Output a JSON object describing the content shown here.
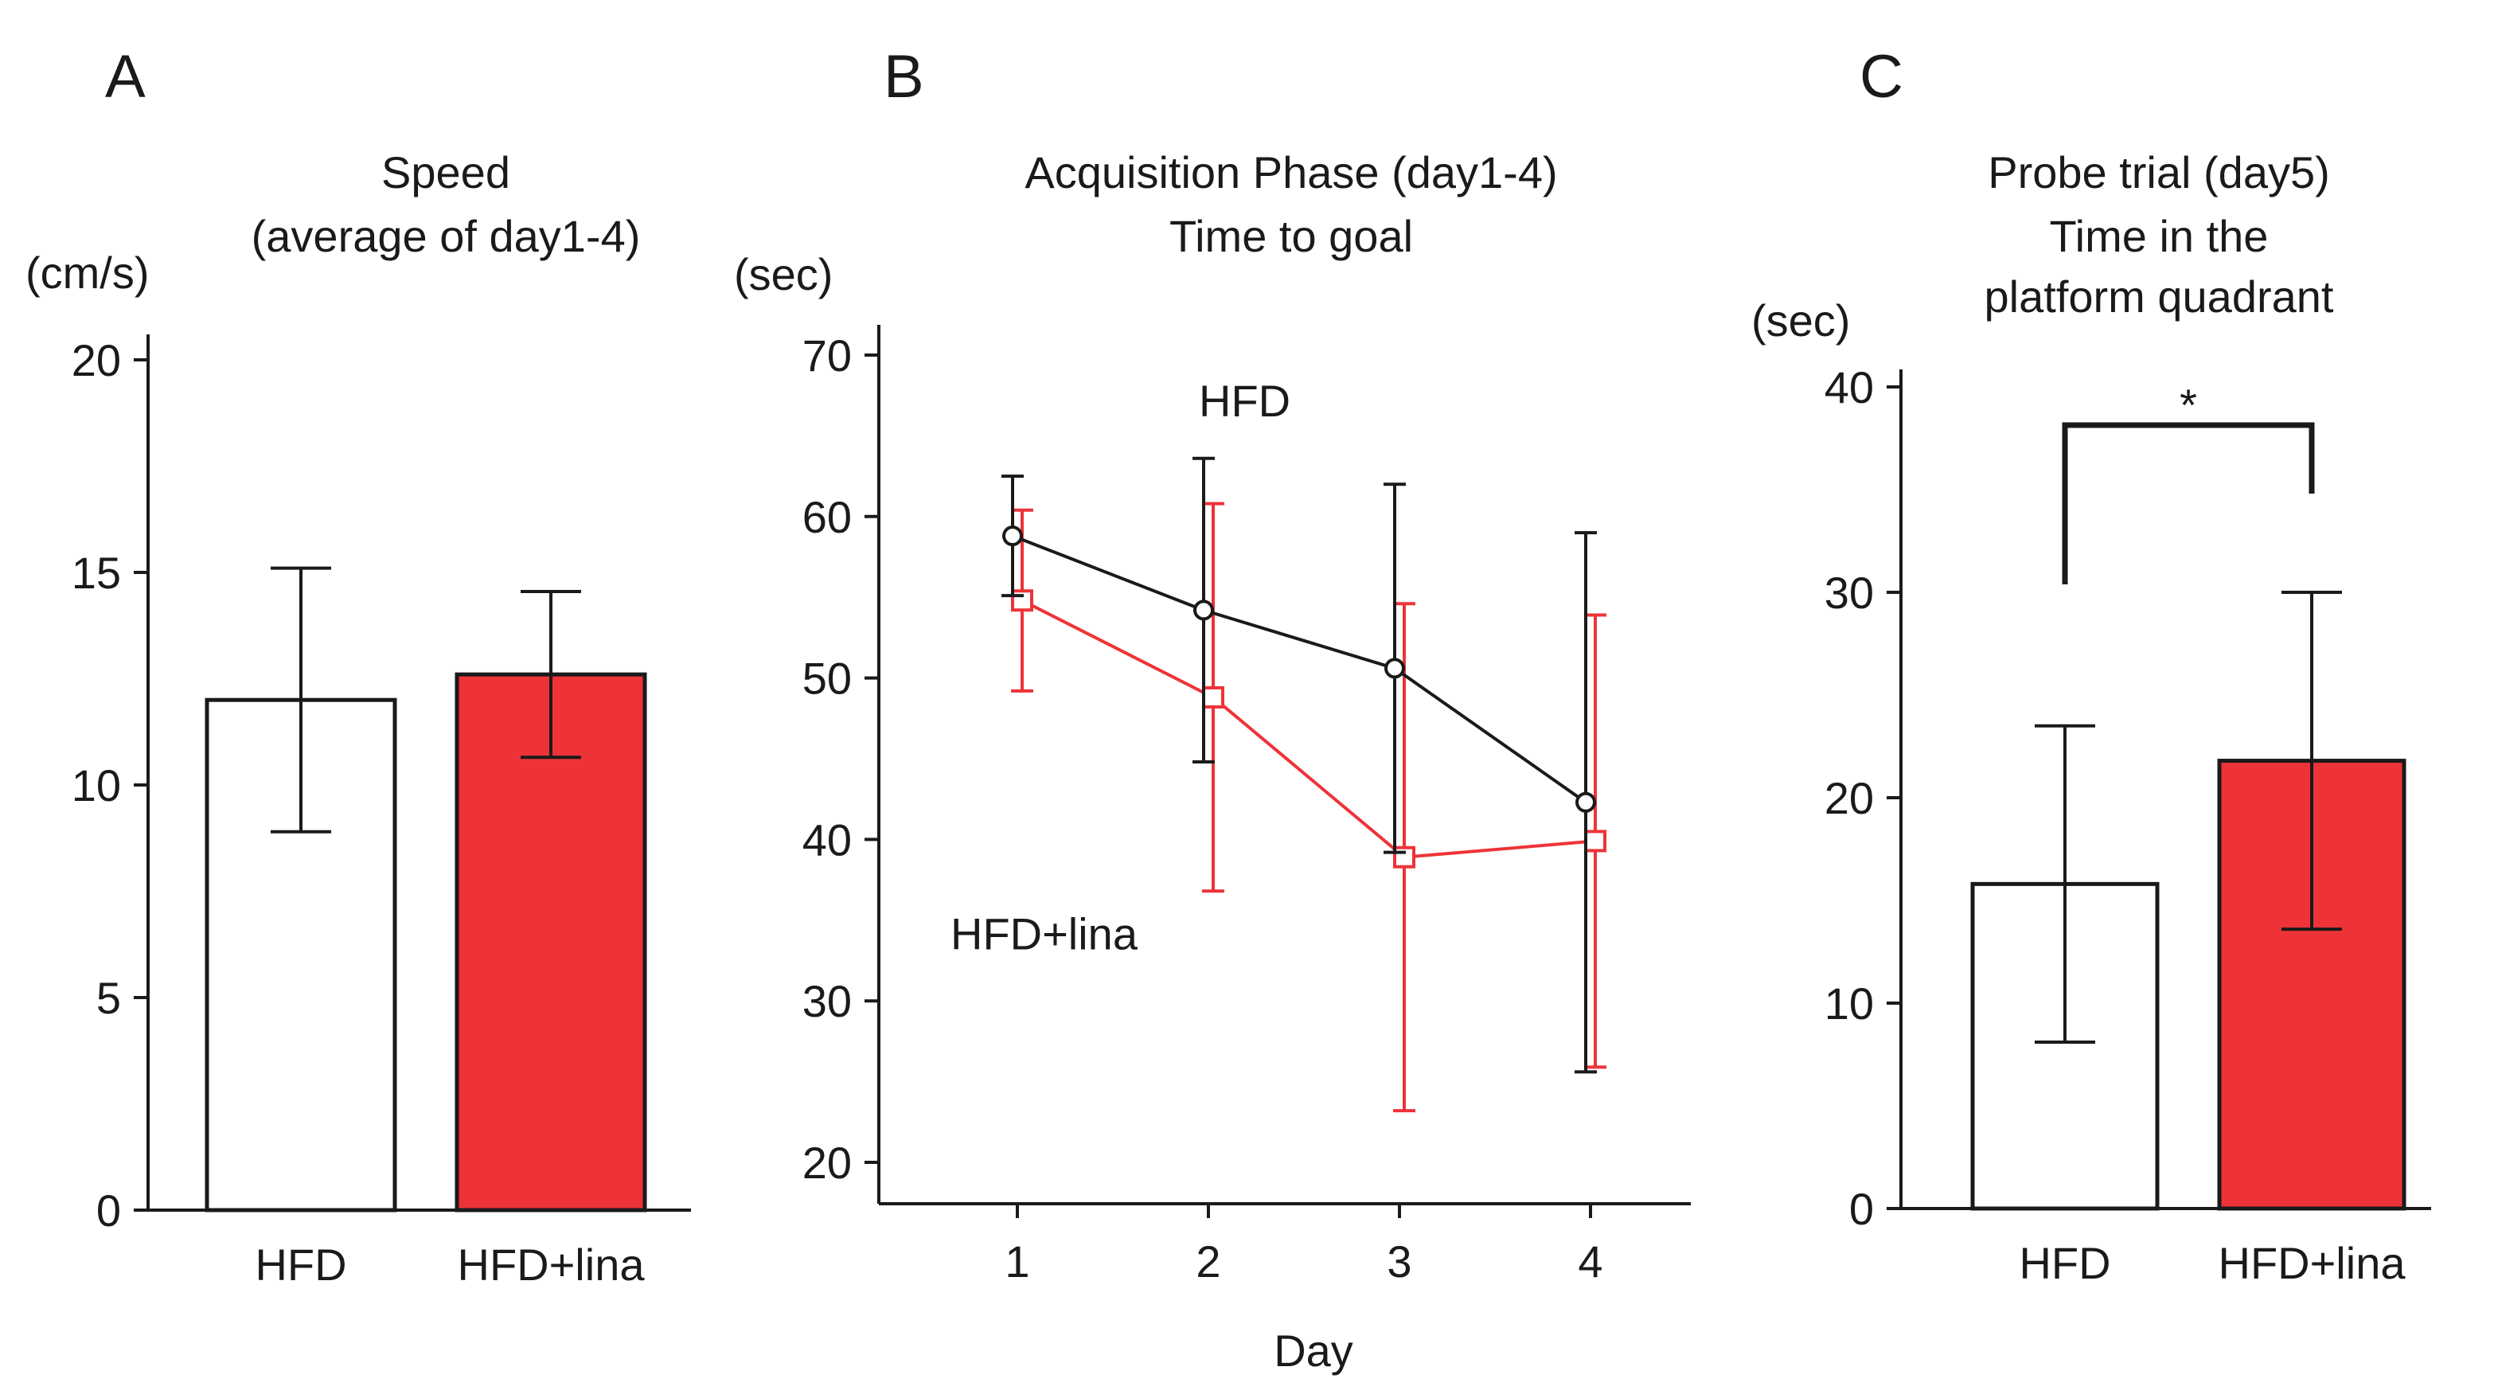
{
  "colors": {
    "hfd_bar": "#ffffff",
    "lina_bar": "#ee3338",
    "outline": "#1a1a1a",
    "hfd_line": "#1a1a1a",
    "lina_line": "#ee3338"
  },
  "chart_data": [
    {
      "panel": "A",
      "type": "bar",
      "title_lines": [
        "Speed",
        "(average of day1-4)"
      ],
      "ylabel": "(cm/s)",
      "xlabel": "",
      "ylim": [
        0,
        20
      ],
      "yticks": [
        0,
        5,
        10,
        15,
        20
      ],
      "categories": [
        "HFD",
        "HFD+lina"
      ],
      "values": [
        12.0,
        12.6
      ],
      "errors": [
        3.1,
        1.95
      ],
      "colors": [
        "#ffffff",
        "#ee3338"
      ]
    },
    {
      "panel": "B",
      "type": "line",
      "title_lines": [
        "Acquisition Phase (day1-4)",
        "Time to goal"
      ],
      "ylabel": "(sec)",
      "xlabel": "Day",
      "ylim": [
        20,
        70
      ],
      "yticks": [
        20,
        30,
        40,
        50,
        60,
        70
      ],
      "x": [
        1,
        2,
        3,
        4
      ],
      "series": [
        {
          "name": "HFD",
          "marker": "circle",
          "color": "#1a1a1a",
          "values": [
            58.8,
            54.2,
            50.6,
            42.3
          ],
          "errors": [
            3.7,
            9.4,
            11.4,
            16.7
          ]
        },
        {
          "name": "HFD+lina",
          "marker": "square",
          "color": "#ee3338",
          "values": [
            54.8,
            48.8,
            38.9,
            39.9
          ],
          "errors": [
            5.6,
            12.0,
            15.7,
            14.0
          ]
        }
      ],
      "annotations": [
        {
          "text": "HFD",
          "x": 1.95,
          "y": 66.2
        },
        {
          "text": "HFD+lina",
          "x": 0.65,
          "y": 33.2
        }
      ]
    },
    {
      "panel": "C",
      "type": "bar",
      "title_lines": [
        "Probe trial  (day5)",
        "Time in the",
        "platform quadrant"
      ],
      "ylabel": "(sec)",
      "xlabel": "",
      "ylim": [
        0,
        40
      ],
      "yticks": [
        0,
        10,
        20,
        30,
        40
      ],
      "categories": [
        "HFD",
        "HFD+lina"
      ],
      "values": [
        15.8,
        21.8
      ],
      "errors": [
        7.7,
        8.2
      ],
      "colors": [
        "#ffffff",
        "#ee3338"
      ],
      "significance": {
        "label": "*",
        "between": [
          "HFD",
          "HFD+lina"
        ]
      }
    }
  ]
}
